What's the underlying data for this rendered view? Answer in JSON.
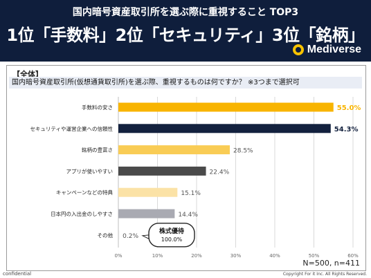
{
  "header": {
    "subtitle": "国内暗号資産取引所を選ぶ際に重視すること TOP3",
    "headline": "1位「手数料」2位「セキュリティ」3位「銘柄」",
    "logo_text": "Mediverse"
  },
  "panel": {
    "segment": "【全体】",
    "question": "国内暗号資産取引所(仮想通貨取引所)を選ぶ際、重視するものは何ですか？ ※3つまで選択可",
    "sample_note": "N=500, n=411"
  },
  "callout": {
    "title": "株式優待",
    "value": "100.0%"
  },
  "footer": {
    "left": "confidential",
    "right": "Copyright For it Inc. All Rights Reserved."
  },
  "chart_data": {
    "type": "bar",
    "orientation": "horizontal",
    "categories": [
      "手数料の安さ",
      "セキュリティや運営企業への信頼性",
      "銘柄の豊富さ",
      "アプリが使いやすい",
      "キャンペーンなどの特典",
      "日本円の入出金のしやすさ",
      "その他"
    ],
    "values": [
      55.0,
      54.3,
      28.5,
      22.4,
      15.1,
      14.4,
      0.2
    ],
    "value_labels": [
      "55.0%",
      "54.3%",
      "28.5%",
      "22.4%",
      "15.1%",
      "14.4%",
      "0.2%"
    ],
    "colors": [
      "#f8b400",
      "#13213e",
      "#f9cc55",
      "#4a4a4a",
      "#fbe2a6",
      "#a9aab2",
      "#dddddd"
    ],
    "label_colors": [
      "#f8b400",
      "#13213e",
      "#555555",
      "#555555",
      "#555555",
      "#555555",
      "#555555"
    ],
    "xlim": [
      0,
      60
    ],
    "xticks": [
      "0%",
      "10%",
      "20%",
      "30%",
      "40%",
      "50%",
      "60%"
    ],
    "grid": true
  }
}
